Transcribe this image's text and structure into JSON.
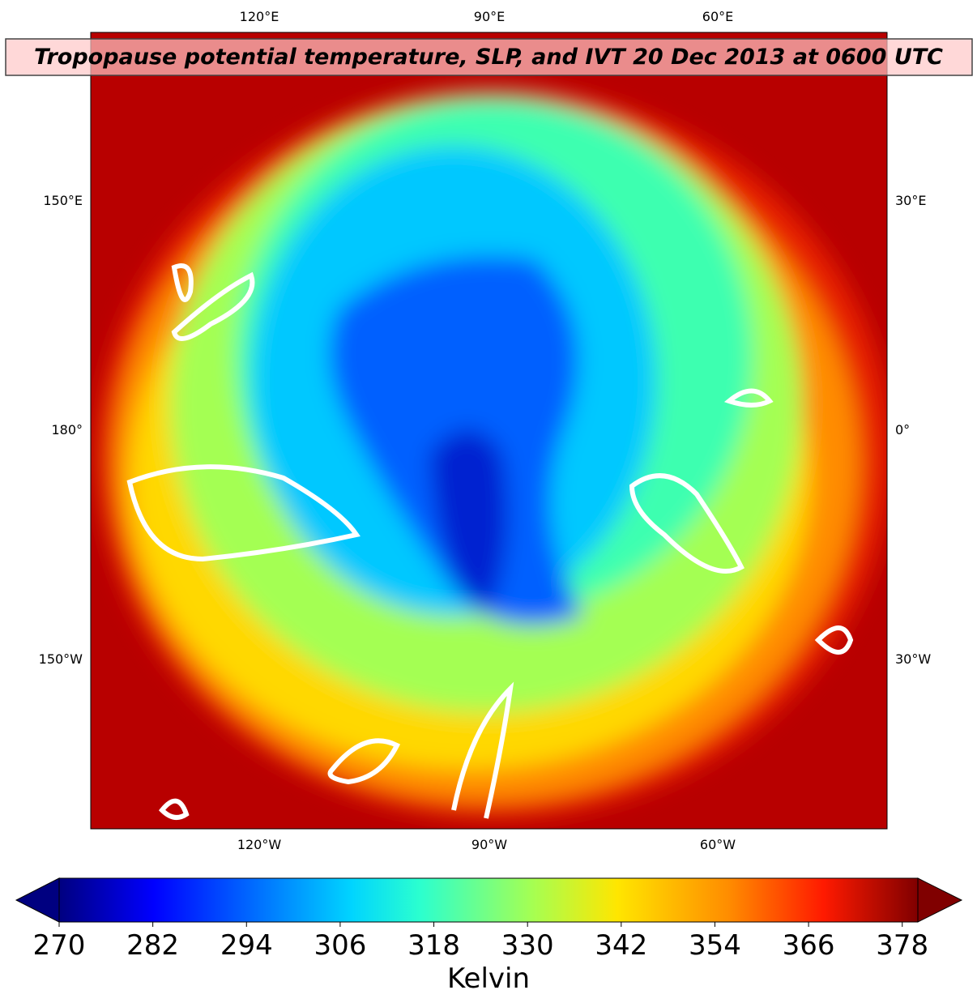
{
  "title": "Tropopause potential temperature, SLP, and IVT 20 Dec 2013 at 0600 UTC",
  "map": {
    "top_labels": [
      "120°E",
      "90°E",
      "60°E"
    ],
    "bottom_labels": [
      "120°W",
      "90°W",
      "60°W"
    ],
    "left_labels": [
      "150°E",
      "180°",
      "150°W"
    ],
    "right_labels": [
      "30°E",
      "0°",
      "30°W"
    ]
  },
  "colorbar": {
    "lim": [
      270,
      380
    ],
    "ticks": [
      270,
      282,
      294,
      306,
      318,
      330,
      342,
      354,
      366,
      378
    ],
    "label": "Kelvin",
    "extend": "both"
  }
}
